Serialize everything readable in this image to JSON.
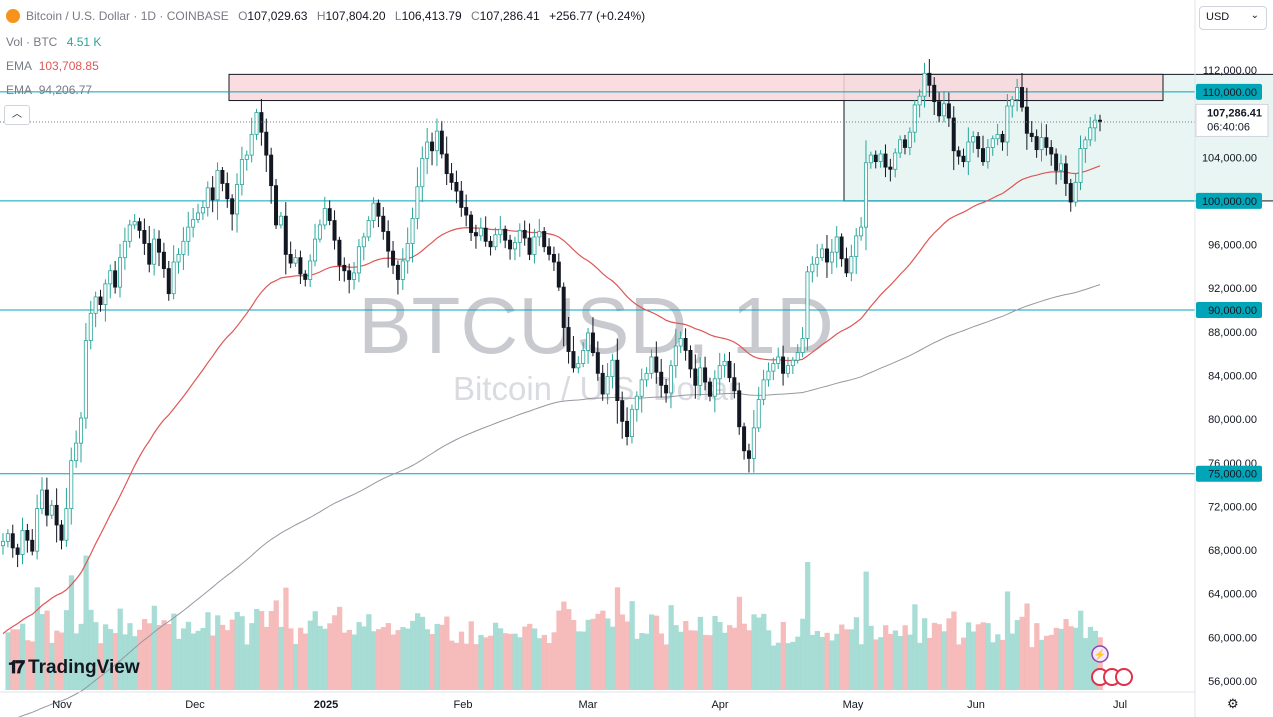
{
  "header": {
    "symbol": "Bitcoin / U.S. Dollar · 1D · COINBASE",
    "open_label": "O",
    "open": "107,029.63",
    "high_label": "H",
    "high": "107,804.20",
    "low_label": "L",
    "low": "106,413.79",
    "close_label": "C",
    "close": "107,286.41",
    "change": "+256.77 (+0.24%)"
  },
  "indicators": {
    "vol_label": "Vol · BTC",
    "vol_value": "4.51 K",
    "ema1_label": "EMA",
    "ema1_value": "103,708.85",
    "ema2_label": "EMA",
    "ema2_value": "94,206.77"
  },
  "currency": "USD",
  "watermark": {
    "line1": "BTCUSD, 1D",
    "line2": "Bitcoin / U.S. Dollar"
  },
  "brand": "TradingView",
  "colors": {
    "up": "#26a69a",
    "down": "#131722",
    "ema_fast": "#e05656",
    "ema_slow": "#9598a1",
    "hline": "#00a5b8",
    "resistance_fill": "#f8d7da",
    "range_fill": "#e8f5f3",
    "vol_up": "#9fd9d2",
    "vol_down": "#f5b5b5"
  },
  "chart_data": {
    "type": "candlestick",
    "title": "Bitcoin / U.S. Dollar · 1D · COINBASE",
    "ylim": [
      55000,
      114000
    ],
    "price_axis_ticks": [
      "112,000.00",
      "108,000.00",
      "104,000.00",
      "100,000.00",
      "96,000.00",
      "92,000.00",
      "88,000.00",
      "84,000.00",
      "80,000.00",
      "76,000.00",
      "72,000.00",
      "68,000.00",
      "64,000.00",
      "60,000.00",
      "56,000.00"
    ],
    "x_ticks": [
      "Nov",
      "Dec",
      "2025",
      "Feb",
      "Mar",
      "Apr",
      "May",
      "Jun",
      "Jul"
    ],
    "horizontal_levels": [
      {
        "value": 110000,
        "label": "110,000.00"
      },
      {
        "value": 100000,
        "label": "100,000.00"
      },
      {
        "value": 90000,
        "label": "90,000.00"
      },
      {
        "value": 75000,
        "label": "75,000.00"
      }
    ],
    "last_price": {
      "value": 107286.41,
      "label": "107,286.41",
      "countdown": "06:40:06"
    },
    "zones": [
      {
        "name": "resistance",
        "from": 109200,
        "to": 111600
      },
      {
        "name": "range",
        "from": 100000,
        "to": 111600
      }
    ],
    "close_series": [
      68800,
      69500,
      68200,
      67600,
      69800,
      68900,
      67900,
      71800,
      73500,
      71200,
      72100,
      70300,
      68900,
      71800,
      76200,
      77800,
      80100,
      87200,
      89700,
      91200,
      90500,
      92400,
      93600,
      92100,
      94800,
      96300,
      97800,
      98100,
      97300,
      96100,
      94200,
      96500,
      95300,
      93800,
      91500,
      94400,
      95100,
      96300,
      97600,
      98300,
      98900,
      99400,
      101200,
      100100,
      102800,
      101600,
      100200,
      98800,
      101500,
      103800,
      104200,
      106100,
      108100,
      106300,
      104200,
      101400,
      97800,
      98600,
      95100,
      94300,
      94800,
      93300,
      92800,
      94500,
      96500,
      97800,
      99300,
      98200,
      96400,
      94100,
      93600,
      92800,
      93400,
      95800,
      96700,
      98200,
      99800,
      98600,
      97200,
      95400,
      94100,
      92800,
      94500,
      96100,
      98400,
      101300,
      103900,
      105400,
      104600,
      106400,
      104300,
      102500,
      101700,
      100900,
      99400,
      98700,
      97100,
      96800,
      97500,
      96300,
      95800,
      96900,
      97400,
      96400,
      95600,
      96200,
      97300,
      96600,
      95100,
      96700,
      97200,
      95800,
      95100,
      94400,
      92100,
      88400,
      86200,
      84700,
      85100,
      86300,
      87900,
      86100,
      84200,
      82300,
      83900,
      85400,
      81700,
      79800,
      78400,
      80900,
      82100,
      83600,
      84200,
      85700,
      84300,
      83100,
      82400,
      84900,
      86700,
      87400,
      86300,
      84600,
      83100,
      84700,
      83400,
      82100,
      83700,
      84900,
      85300,
      83800,
      82600,
      79300,
      77100,
      76400,
      79200,
      81800,
      83600,
      84400,
      85100,
      85700,
      84200,
      84900,
      85400,
      86100,
      87400,
      93500,
      94200,
      94800,
      95600,
      94400,
      95300,
      96700,
      94700,
      93400,
      94900,
      96800,
      97600,
      103500,
      104200,
      103600,
      104300,
      103100,
      102900,
      104400,
      105600,
      104900,
      106300,
      108800,
      109600,
      111700,
      110600,
      109100,
      107800,
      108900,
      107600,
      104600,
      104100,
      103600,
      105400,
      105900,
      104800,
      103600,
      104900,
      105700,
      106100,
      105400,
      108700,
      109300,
      110400,
      108600,
      106200,
      105900,
      104700,
      105800,
      104900,
      104300,
      102800,
      103400,
      101600,
      99900,
      101700,
      104800,
      105600,
      106700,
      107400,
      107286
    ]
  }
}
